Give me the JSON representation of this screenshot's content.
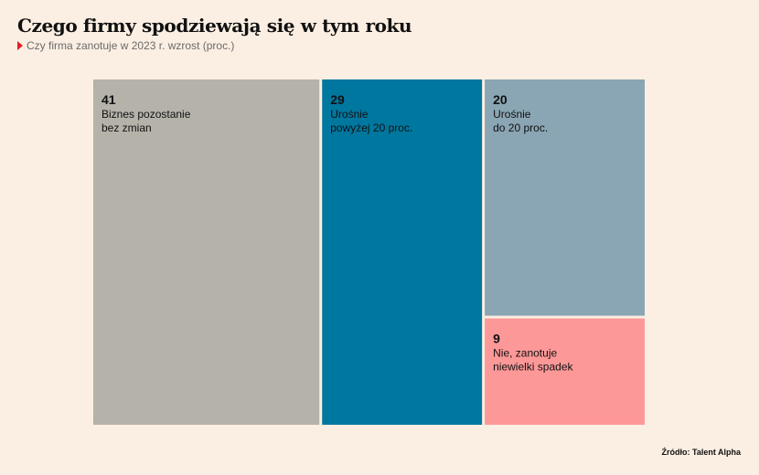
{
  "title": "Czego firmy spodziewają się w tym roku",
  "subtitle": "Czy firma zanotuje w 2023 r. wzrost (proc.)",
  "source": "Źródło: Talent Alpha",
  "chart_data": {
    "type": "treemap",
    "title": "Czego firmy spodziewają się w tym roku",
    "subtitle": "Czy firma zanotuje w 2023 r. wzrost (proc.)",
    "unit": "proc.",
    "items": [
      {
        "value": 41,
        "label_lines": [
          "Biznes pozostanie",
          "bez zmian"
        ],
        "color": "#b5b2a9"
      },
      {
        "value": 29,
        "label_lines": [
          "Urośnie",
          "powyżej 20 proc."
        ],
        "color": "#00779f"
      },
      {
        "value": 20,
        "label_lines": [
          "Urośnie",
          "do 20 proc."
        ],
        "color": "#8aa5b3"
      },
      {
        "value": 9,
        "label_lines": [
          "Nie, zanotuje",
          "niewielki spadek"
        ],
        "color": "#fd9898"
      }
    ]
  },
  "colors": {
    "background": "#fbeee2",
    "marker": "#e41e26",
    "value_text": "#111111"
  }
}
